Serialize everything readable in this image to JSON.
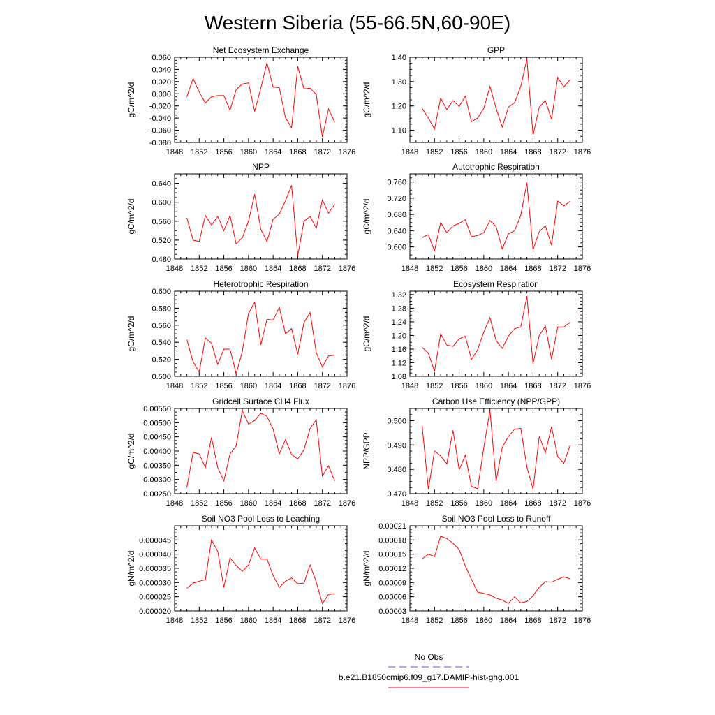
{
  "title": "Western Siberia (55-66.5N,60-90E)",
  "colors": {
    "series": "#ff0000",
    "obs": "#5555ff",
    "axis": "#000000"
  },
  "legend": {
    "obs_label": "No Obs",
    "model_label": "b.e21.B1850cmip6.f09_g17.DAMIP-hist-ghg.001"
  },
  "chart_data": [
    {
      "type": "line",
      "title": "Net Ecosystem Exchange",
      "ylabel": "gC/m^2/d",
      "xlim": [
        1848,
        1876
      ],
      "xticks": [
        1848,
        1852,
        1856,
        1860,
        1864,
        1868,
        1872,
        1876
      ],
      "ylim": [
        -0.08,
        0.06
      ],
      "yticks": [
        -0.08,
        -0.06,
        -0.04,
        -0.02,
        0.0,
        0.02,
        0.04,
        0.06
      ],
      "ytick_labels": [
        "-0.080",
        "-0.060",
        "-0.040",
        "-0.020",
        "0.000",
        "0.020",
        "0.040",
        "0.060"
      ],
      "x": [
        1850,
        1851,
        1852,
        1853,
        1854,
        1855,
        1856,
        1857,
        1858,
        1859,
        1860,
        1861,
        1862,
        1863,
        1864,
        1865,
        1866,
        1867,
        1868,
        1869,
        1870,
        1871,
        1872,
        1873,
        1874
      ],
      "values": [
        -0.005,
        0.025,
        0.003,
        -0.015,
        -0.005,
        -0.003,
        -0.003,
        -0.027,
        0.007,
        0.016,
        0.018,
        -0.029,
        0.009,
        0.051,
        0.011,
        0.01,
        -0.039,
        -0.056,
        0.045,
        0.008,
        0.009,
        -0.001,
        -0.071,
        -0.025,
        -0.047
      ]
    },
    {
      "type": "line",
      "title": "GPP",
      "ylabel": "gC/m^2/d",
      "xlim": [
        1848,
        1876
      ],
      "xticks": [
        1848,
        1852,
        1856,
        1860,
        1864,
        1868,
        1872,
        1876
      ],
      "ylim": [
        1.05,
        1.4
      ],
      "yticks": [
        1.1,
        1.2,
        1.3,
        1.4
      ],
      "ytick_labels": [
        "1.10",
        "1.20",
        "1.30",
        "1.40"
      ],
      "x": [
        1850,
        1851,
        1852,
        1853,
        1854,
        1855,
        1856,
        1857,
        1858,
        1859,
        1860,
        1861,
        1862,
        1863,
        1864,
        1865,
        1866,
        1867,
        1868,
        1869,
        1870,
        1871,
        1872,
        1873,
        1874
      ],
      "values": [
        1.19,
        1.15,
        1.105,
        1.232,
        1.185,
        1.222,
        1.198,
        1.24,
        1.135,
        1.15,
        1.19,
        1.28,
        1.19,
        1.113,
        1.195,
        1.213,
        1.28,
        1.393,
        1.08,
        1.195,
        1.222,
        1.145,
        1.318,
        1.278,
        1.308
      ]
    },
    {
      "type": "line",
      "title": "NPP",
      "ylabel": "gC/m^2/d",
      "xlim": [
        1848,
        1876
      ],
      "xticks": [
        1848,
        1852,
        1856,
        1860,
        1864,
        1868,
        1872,
        1876
      ],
      "ylim": [
        0.48,
        0.66
      ],
      "yticks": [
        0.48,
        0.52,
        0.56,
        0.6,
        0.64
      ],
      "ytick_labels": [
        "0.480",
        "0.520",
        "0.560",
        "0.600",
        "0.640"
      ],
      "x": [
        1850,
        1851,
        1852,
        1853,
        1854,
        1855,
        1856,
        1857,
        1858,
        1859,
        1860,
        1861,
        1862,
        1863,
        1864,
        1865,
        1866,
        1867,
        1868,
        1869,
        1870,
        1871,
        1872,
        1873,
        1874
      ],
      "values": [
        0.567,
        0.52,
        0.517,
        0.572,
        0.552,
        0.57,
        0.54,
        0.572,
        0.512,
        0.525,
        0.56,
        0.617,
        0.543,
        0.517,
        0.564,
        0.575,
        0.603,
        0.636,
        0.487,
        0.56,
        0.57,
        0.545,
        0.605,
        0.577,
        0.596
      ]
    },
    {
      "type": "line",
      "title": "Autotrophic Respiration",
      "ylabel": "gC/m^2/d",
      "xlim": [
        1848,
        1876
      ],
      "xticks": [
        1848,
        1852,
        1856,
        1860,
        1864,
        1868,
        1872,
        1876
      ],
      "ylim": [
        0.57,
        0.78
      ],
      "yticks": [
        0.6,
        0.64,
        0.68,
        0.72,
        0.76
      ],
      "ytick_labels": [
        "0.600",
        "0.640",
        "0.680",
        "0.720",
        "0.760"
      ],
      "x": [
        1850,
        1851,
        1852,
        1853,
        1854,
        1855,
        1856,
        1857,
        1858,
        1859,
        1860,
        1861,
        1862,
        1863,
        1864,
        1865,
        1866,
        1867,
        1868,
        1869,
        1870,
        1871,
        1872,
        1873,
        1874
      ],
      "values": [
        0.623,
        0.63,
        0.59,
        0.66,
        0.635,
        0.652,
        0.658,
        0.667,
        0.625,
        0.628,
        0.635,
        0.665,
        0.65,
        0.595,
        0.632,
        0.64,
        0.678,
        0.758,
        0.593,
        0.638,
        0.652,
        0.604,
        0.713,
        0.701,
        0.712
      ]
    },
    {
      "type": "line",
      "title": "Heterotrophic Respiration",
      "ylabel": "gC/m^2/d",
      "xlim": [
        1848,
        1876
      ],
      "xticks": [
        1848,
        1852,
        1856,
        1860,
        1864,
        1868,
        1872,
        1876
      ],
      "ylim": [
        0.5,
        0.6
      ],
      "yticks": [
        0.5,
        0.52,
        0.54,
        0.56,
        0.58,
        0.6
      ],
      "ytick_labels": [
        "0.500",
        "0.520",
        "0.540",
        "0.560",
        "0.580",
        "0.600"
      ],
      "x": [
        1850,
        1851,
        1852,
        1853,
        1854,
        1855,
        1856,
        1857,
        1858,
        1859,
        1860,
        1861,
        1862,
        1863,
        1864,
        1865,
        1866,
        1867,
        1868,
        1869,
        1870,
        1871,
        1872,
        1873,
        1874
      ],
      "values": [
        0.543,
        0.517,
        0.505,
        0.545,
        0.539,
        0.514,
        0.532,
        0.532,
        0.503,
        0.529,
        0.574,
        0.587,
        0.537,
        0.567,
        0.566,
        0.581,
        0.55,
        0.556,
        0.526,
        0.563,
        0.575,
        0.528,
        0.511,
        0.524,
        0.525
      ]
    },
    {
      "type": "line",
      "title": "Ecosystem Respiration",
      "ylabel": "gC/m^2/d",
      "xlim": [
        1848,
        1876
      ],
      "xticks": [
        1848,
        1852,
        1856,
        1860,
        1864,
        1868,
        1872,
        1876
      ],
      "ylim": [
        1.08,
        1.33
      ],
      "yticks": [
        1.08,
        1.12,
        1.16,
        1.2,
        1.24,
        1.28,
        1.32
      ],
      "ytick_labels": [
        "1.08",
        "1.12",
        "1.16",
        "1.20",
        "1.24",
        "1.28",
        "1.32"
      ],
      "x": [
        1850,
        1851,
        1852,
        1853,
        1854,
        1855,
        1856,
        1857,
        1858,
        1859,
        1860,
        1861,
        1862,
        1863,
        1864,
        1865,
        1866,
        1867,
        1868,
        1869,
        1870,
        1871,
        1872,
        1873,
        1874
      ],
      "values": [
        1.165,
        1.148,
        1.095,
        1.205,
        1.172,
        1.168,
        1.19,
        1.198,
        1.13,
        1.158,
        1.21,
        1.252,
        1.185,
        1.162,
        1.198,
        1.22,
        1.225,
        1.315,
        1.118,
        1.2,
        1.228,
        1.13,
        1.225,
        1.225,
        1.238
      ]
    },
    {
      "type": "line",
      "title": "Gridcell Surface CH4 Flux",
      "ylabel": "gC/m^2/d",
      "xlim": [
        1848,
        1876
      ],
      "xticks": [
        1848,
        1852,
        1856,
        1860,
        1864,
        1868,
        1872,
        1876
      ],
      "ylim": [
        0.0025,
        0.0055
      ],
      "yticks": [
        0.0025,
        0.003,
        0.0035,
        0.004,
        0.0045,
        0.005,
        0.0055
      ],
      "ytick_labels": [
        "0.00250",
        "0.00300",
        "0.00350",
        "0.00400",
        "0.00450",
        "0.00500",
        "0.00550"
      ],
      "x": [
        1850,
        1851,
        1852,
        1853,
        1854,
        1855,
        1856,
        1857,
        1858,
        1859,
        1860,
        1861,
        1862,
        1863,
        1864,
        1865,
        1866,
        1867,
        1868,
        1869,
        1870,
        1871,
        1872,
        1873,
        1874
      ],
      "values": [
        0.00272,
        0.00395,
        0.0039,
        0.00342,
        0.00448,
        0.00342,
        0.00295,
        0.0039,
        0.00418,
        0.00543,
        0.00495,
        0.00508,
        0.00533,
        0.00522,
        0.00478,
        0.0039,
        0.0044,
        0.00388,
        0.00372,
        0.00405,
        0.0048,
        0.0051,
        0.00312,
        0.00348,
        0.00295
      ]
    },
    {
      "type": "line",
      "title": "Carbon Use Efficiency (NPP/GPP)",
      "ylabel": "NPP/GPP",
      "xlim": [
        1848,
        1876
      ],
      "xticks": [
        1848,
        1852,
        1856,
        1860,
        1864,
        1868,
        1872,
        1876
      ],
      "ylim": [
        0.47,
        0.505
      ],
      "yticks": [
        0.47,
        0.48,
        0.49,
        0.5
      ],
      "ytick_labels": [
        "0.470",
        "0.480",
        "0.490",
        "0.500"
      ],
      "x": [
        1850,
        1851,
        1852,
        1853,
        1854,
        1855,
        1856,
        1857,
        1858,
        1859,
        1860,
        1861,
        1862,
        1863,
        1864,
        1865,
        1866,
        1867,
        1868,
        1869,
        1870,
        1871,
        1872,
        1873,
        1874
      ],
      "values": [
        0.4978,
        0.4718,
        0.4875,
        0.4855,
        0.4823,
        0.496,
        0.4798,
        0.4858,
        0.473,
        0.472,
        0.489,
        0.5043,
        0.4752,
        0.489,
        0.4935,
        0.4965,
        0.4968,
        0.481,
        0.4718,
        0.4935,
        0.4868,
        0.4975,
        0.4852,
        0.4825,
        0.4898
      ]
    },
    {
      "type": "line",
      "title": "Soil NO3 Pool Loss to Leaching",
      "ylabel": "gN/m^2/d",
      "xlim": [
        1848,
        1876
      ],
      "xticks": [
        1848,
        1852,
        1856,
        1860,
        1864,
        1868,
        1872,
        1876
      ],
      "ylim": [
        2e-05,
        5e-05
      ],
      "yticks": [
        2e-05,
        2.5e-05,
        3e-05,
        3.5e-05,
        4e-05,
        4.5e-05
      ],
      "ytick_labels": [
        "0.000020",
        "0.000025",
        "0.000030",
        "0.000035",
        "0.000040",
        "0.000045"
      ],
      "x": [
        1850,
        1851,
        1852,
        1853,
        1854,
        1855,
        1856,
        1857,
        1858,
        1859,
        1860,
        1861,
        1862,
        1863,
        1864,
        1865,
        1866,
        1867,
        1868,
        1869,
        1870,
        1871,
        1872,
        1873,
        1874
      ],
      "values": [
        2.8e-05,
        2.98e-05,
        3.05e-05,
        3.1e-05,
        4.5e-05,
        4.1e-05,
        2.83e-05,
        3.87e-05,
        3.6e-05,
        3.4e-05,
        3.62e-05,
        4.22e-05,
        3.83e-05,
        3.83e-05,
        3.25e-05,
        2.83e-05,
        3.05e-05,
        3.16e-05,
        2.96e-05,
        2.98e-05,
        3.62e-05,
        3.02e-05,
        2.26e-05,
        2.58e-05,
        2.61e-05
      ]
    },
    {
      "type": "line",
      "title": "Soil NO3 Pool Loss to Runoff",
      "ylabel": "gN/m^2/d",
      "xlim": [
        1848,
        1876
      ],
      "xticks": [
        1848,
        1852,
        1856,
        1860,
        1864,
        1868,
        1872,
        1876
      ],
      "ylim": [
        3e-05,
        0.00021
      ],
      "yticks": [
        3e-05,
        6e-05,
        9e-05,
        0.00012,
        0.00015,
        0.00018,
        0.00021
      ],
      "ytick_labels": [
        "0.00003",
        "0.00006",
        "0.00009",
        "0.00012",
        "0.00015",
        "0.00018",
        "0.00021"
      ],
      "x": [
        1850,
        1851,
        1852,
        1853,
        1854,
        1855,
        1856,
        1857,
        1858,
        1859,
        1860,
        1861,
        1862,
        1863,
        1864,
        1865,
        1866,
        1867,
        1868,
        1869,
        1870,
        1871,
        1872,
        1873,
        1874
      ],
      "values": [
        0.00014,
        0.00015,
        0.000145,
        0.000188,
        0.000183,
        0.000173,
        0.00016,
        0.000125,
        9.7e-05,
        7e-05,
        6.7e-05,
        6.4e-05,
        5.7e-05,
        5.3e-05,
        4.6e-05,
        6e-05,
        4.7e-05,
        5e-05,
        6.2e-05,
        8e-05,
        9.2e-05,
        9.1e-05,
        9.7e-05,
        0.000102,
        9.8e-05
      ]
    }
  ]
}
